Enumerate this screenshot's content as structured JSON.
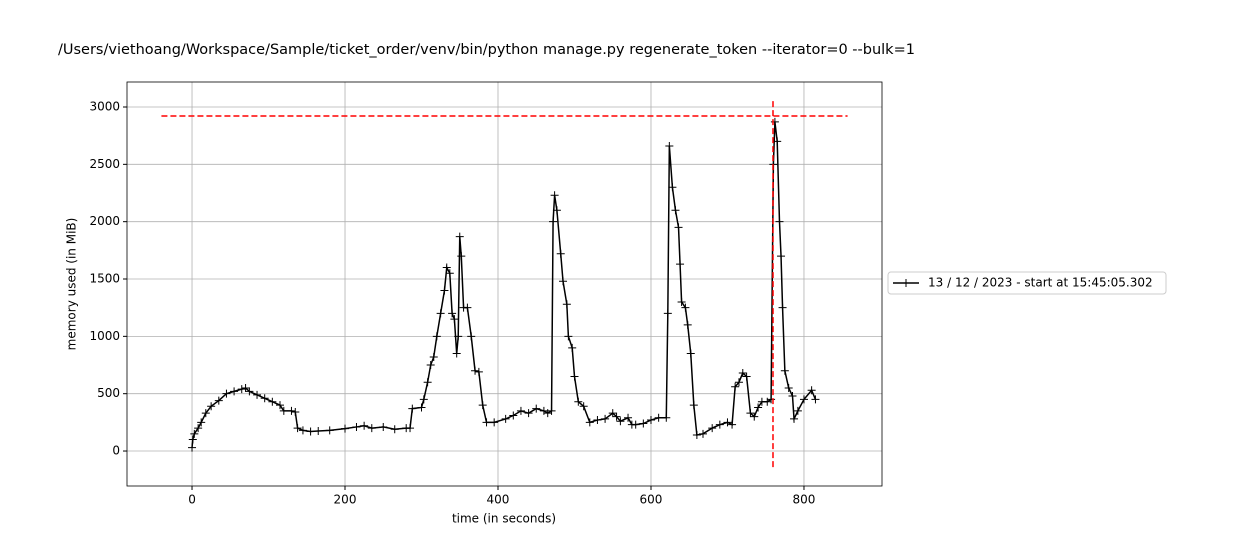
{
  "chart_data": {
    "type": "line",
    "title": "/Users/viethoang/Workspace/Sample/ticket_order/venv/bin/python manage.py regenerate_token --iterator=0 --bulk=1",
    "xlabel": "time (in seconds)",
    "ylabel": "memory used (in MiB)",
    "x": [
      0,
      1,
      3,
      8,
      12,
      18,
      25,
      35,
      45,
      55,
      65,
      70,
      75,
      85,
      95,
      105,
      115,
      120,
      130,
      135,
      138,
      145,
      155,
      165,
      180,
      200,
      215,
      225,
      235,
      250,
      265,
      280,
      285,
      288,
      300,
      303,
      308,
      312,
      316,
      320,
      325,
      330,
      333,
      337,
      340,
      343,
      346,
      348,
      350,
      352,
      355,
      360,
      365,
      370,
      375,
      380,
      385,
      395,
      410,
      420,
      430,
      440,
      450,
      460,
      465,
      470,
      472,
      474,
      477,
      482,
      485,
      490,
      492,
      497,
      500,
      505,
      512,
      520,
      530,
      540,
      550,
      555,
      560,
      570,
      575,
      580,
      590,
      600,
      610,
      620,
      622,
      624,
      628,
      632,
      636,
      638,
      640,
      645,
      648,
      652,
      656,
      660,
      668,
      680,
      690,
      700,
      706,
      710,
      715,
      720,
      725,
      730,
      735,
      740,
      745,
      752,
      757,
      760,
      762,
      765,
      768,
      770,
      772,
      775,
      780,
      785,
      787,
      792,
      800,
      810,
      815
    ],
    "series": [
      {
        "name": "13 / 12 / 2023 - start at 15:45:05.302",
        "color": "#000000",
        "marker": "+",
        "values": [
          30,
          100,
          150,
          200,
          250,
          330,
          390,
          440,
          500,
          520,
          540,
          550,
          520,
          490,
          460,
          430,
          400,
          350,
          350,
          340,
          200,
          180,
          170,
          175,
          180,
          195,
          210,
          220,
          200,
          210,
          190,
          200,
          200,
          370,
          380,
          450,
          600,
          750,
          820,
          1000,
          1200,
          1400,
          1600,
          1550,
          1200,
          1150,
          850,
          1000,
          1870,
          1700,
          1250,
          1250,
          1000,
          700,
          690,
          400,
          250,
          250,
          280,
          310,
          350,
          330,
          370,
          350,
          330,
          350,
          2000,
          2230,
          2100,
          1720,
          1480,
          1280,
          1000,
          900,
          650,
          430,
          390,
          250,
          270,
          280,
          330,
          300,
          260,
          290,
          230,
          230,
          240,
          270,
          290,
          290,
          1200,
          2660,
          2300,
          2100,
          1950,
          1630,
          1300,
          1250,
          1100,
          850,
          400,
          140,
          150,
          200,
          230,
          250,
          230,
          560,
          600,
          680,
          650,
          330,
          300,
          380,
          430,
          430,
          450,
          2500,
          2870,
          2700,
          2000,
          1700,
          1250,
          700,
          550,
          480,
          280,
          350,
          450,
          530,
          450
        ]
      }
    ],
    "xlim": [
      -85,
      902
    ],
    "ylim": [
      -305,
      3218
    ],
    "xticks": [
      0,
      200,
      400,
      600,
      800
    ],
    "yticks": [
      0,
      500,
      1000,
      1500,
      2000,
      2500,
      3000
    ],
    "grid": true,
    "legend": "outside right",
    "reference_lines": [
      {
        "orientation": "horizontal",
        "value": 2921,
        "from": -40,
        "to": 857,
        "color": "#ff0000",
        "style": "dashed"
      },
      {
        "orientation": "vertical",
        "value": 759.5,
        "from": -140,
        "to": 3070,
        "color": "#ff0000",
        "style": "dashed"
      }
    ]
  }
}
